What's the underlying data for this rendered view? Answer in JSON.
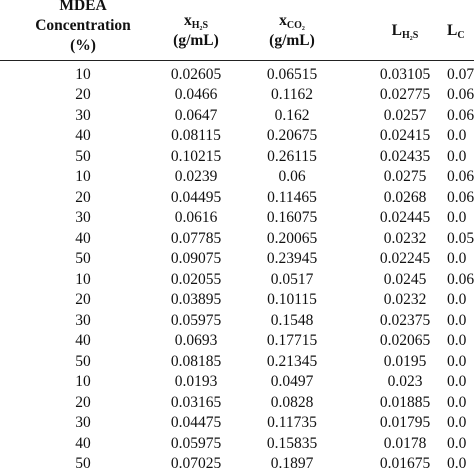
{
  "table": {
    "header": [
      {
        "lines": [
          "MDEA",
          "Concentration",
          "(%)"
        ]
      },
      {
        "main": "x",
        "sub": "H₂S",
        "unit": "(g/mL)"
      },
      {
        "main": "x",
        "sub": "CO₂",
        "unit": "(g/mL)"
      },
      {
        "main": "L",
        "sub": "H₂S"
      },
      {
        "main": "L",
        "sub": "C"
      }
    ],
    "rows": [
      [
        "10",
        "0.02605",
        "0.06515",
        "0.03105",
        "0.07"
      ],
      [
        "20",
        "0.0466",
        "0.1162",
        "0.02775",
        "0.06"
      ],
      [
        "30",
        "0.0647",
        "0.162",
        "0.0257",
        "0.06"
      ],
      [
        "40",
        "0.08115",
        "0.20675",
        "0.02415",
        "0.0"
      ],
      [
        "50",
        "0.10215",
        "0.26115",
        "0.02435",
        "0.0"
      ],
      [
        "10",
        "0.0239",
        "0.06",
        "0.0275",
        "0.06"
      ],
      [
        "20",
        "0.04495",
        "0.11465",
        "0.0268",
        "0.06"
      ],
      [
        "30",
        "0.0616",
        "0.16075",
        "0.02445",
        "0.0"
      ],
      [
        "40",
        "0.07785",
        "0.20065",
        "0.0232",
        "0.05"
      ],
      [
        "50",
        "0.09075",
        "0.23945",
        "0.02245",
        "0.0"
      ],
      [
        "10",
        "0.02055",
        "0.0517",
        "0.0245",
        "0.06"
      ],
      [
        "20",
        "0.03895",
        "0.10115",
        "0.0232",
        "0.0"
      ],
      [
        "30",
        "0.05975",
        "0.1548",
        "0.02375",
        "0.0"
      ],
      [
        "40",
        "0.0693",
        "0.17715",
        "0.02065",
        "0.0"
      ],
      [
        "50",
        "0.08185",
        "0.21345",
        "0.0195",
        "0.0"
      ],
      [
        "10",
        "0.0193",
        "0.0497",
        "0.023",
        "0.0"
      ],
      [
        "20",
        "0.03165",
        "0.0828",
        "0.01885",
        "0.0"
      ],
      [
        "30",
        "0.04475",
        "0.11735",
        "0.01795",
        "0.0"
      ],
      [
        "40",
        "0.05975",
        "0.15835",
        "0.0178",
        "0.0"
      ],
      [
        "50",
        "0.07025",
        "0.1897",
        "0.01675",
        "0.0"
      ]
    ]
  }
}
